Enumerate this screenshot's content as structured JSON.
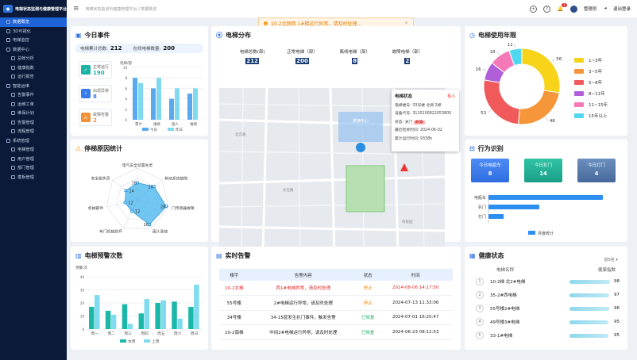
{
  "app": {
    "title": "电梯状态监测与健康管理平台"
  },
  "sidebar": {
    "items": [
      {
        "label": "数据概览",
        "active": true,
        "sub": false
      },
      {
        "label": "3D可视化",
        "sub": false
      },
      {
        "label": "电梯监控",
        "sub": false
      },
      {
        "label": "数据中心",
        "sub": false
      },
      {
        "label": "总帐分析",
        "sub": true
      },
      {
        "label": "健康指数",
        "sub": true
      },
      {
        "label": "运行报告",
        "sub": true
      },
      {
        "label": "智能运维",
        "sub": false
      },
      {
        "label": "告警事件",
        "sub": true
      },
      {
        "label": "运维工单",
        "sub": true
      },
      {
        "label": "维保计划",
        "sub": true
      },
      {
        "label": "告警管理",
        "sub": true
      },
      {
        "label": "流程管理",
        "sub": true
      },
      {
        "label": "系统管理",
        "sub": false
      },
      {
        "label": "电梯管理",
        "sub": true
      },
      {
        "label": "用户管理",
        "sub": true
      },
      {
        "label": "部门管理",
        "sub": true
      },
      {
        "label": "模板管理",
        "sub": true
      }
    ]
  },
  "topbar": {
    "breadcrumb": "电梯状态监测与健康管理平台 / 数据概览",
    "user": "管理员",
    "logout": "退出登录",
    "notif_count": "1"
  },
  "toast": {
    "text": "10-2北侧西 1#梯运行异常，请及时处理..."
  },
  "today": {
    "title": "今日事件",
    "total_label": "电梯累计总数:",
    "total": "212",
    "online_label": "在线电梯数量:",
    "online": "200",
    "normal_label": "正常运行",
    "normal": "190",
    "warning_label": "出现异常",
    "warning": "8",
    "fault_label": "故障告警",
    "fault": "2",
    "axis_label": "电梯/部",
    "cats": [
      "累计",
      "维修",
      "困人",
      "维保"
    ],
    "legend": [
      "今日",
      "昨日"
    ]
  },
  "dist": {
    "title": "电梯分布",
    "labels": [
      "电梯总数(部)",
      "正常电梯（部）",
      "离线电梯（部）",
      "故障电梯（部）"
    ],
    "values": [
      "212",
      "200",
      "8",
      "2"
    ],
    "popup": {
      "title": "电梯状态",
      "floor_lbl": "电梯楼号:",
      "floor": "33号楼 北侧 2梯",
      "code_lbl": "设备代号:",
      "code": "311010082205380S",
      "state_lbl": "状态:",
      "state": "关门",
      "state_tag": "故障",
      "last_lbl": "最近检修时间:",
      "last": "2024-06-02",
      "run_lbl": "累计运行时间:",
      "run": "9338h",
      "people": "有人"
    },
    "map_labels": [
      "拼接中心",
      "北京路",
      "文化路",
      "科技园"
    ]
  },
  "years": {
    "title": "电梯使用年限",
    "labels": [
      "1~3年",
      "3~5年",
      "5~8年",
      "8~11年",
      "11~15年",
      "15年以上"
    ],
    "values": [
      56,
      48,
      53,
      16,
      18,
      11
    ],
    "colors": [
      "#f7d31a",
      "#f5963a",
      "#f05a5a",
      "#b05fd8",
      "#f578b8",
      "#4fd8f0"
    ]
  },
  "behavior": {
    "title": "行为识别",
    "cards": [
      {
        "label": "今日电瓶车",
        "value": "8"
      },
      {
        "label": "今日扒门",
        "value": "14"
      },
      {
        "label": "今日打门",
        "value": "4"
      }
    ],
    "cats": [
      "电瓶车",
      "扒门",
      "打门"
    ],
    "values": [
      90,
      40,
      12
    ],
    "legend": "月度统计"
  },
  "stop": {
    "title": "停梯原因统计",
    "cats": [
      "电气安全装置失灵",
      "制动系统故障",
      "门传感器故障",
      "困人事故",
      "车门机械损坏",
      "机械部件",
      "安全钳失灵"
    ],
    "values": [
      16,
      20,
      28,
      26,
      12,
      12,
      14
    ],
    "max": 30
  },
  "warn": {
    "title": "电梯预警次数",
    "ylabel": "预警/次",
    "cats": [
      "周一",
      "周二",
      "周三",
      "周四",
      "周五",
      "周六",
      "周日"
    ],
    "this_week": [
      17,
      14,
      19,
      12,
      20,
      21,
      17
    ],
    "last_week": [
      26,
      11,
      4,
      23,
      22,
      8,
      34
    ],
    "legend": [
      "本周",
      "上周"
    ]
  },
  "alarm": {
    "title": "实时告警",
    "headers": [
      "楼宇",
      "告警内容",
      "状态",
      "时间"
    ],
    "rows": [
      [
        "10-2北梯",
        "西1#电梯异常，请及时处理",
        "停止",
        "2024-08-06 14:17:50"
      ],
      [
        "55号楼",
        "2#电梯运行异常，请及时处理",
        "停止",
        "2024-07-13 11:33:06"
      ],
      [
        "34号楼",
        "34-15层发生扒门事件，触发告警",
        "已恢复",
        "2024-07-01 16:20:47"
      ],
      [
        "10-2南梯",
        "中间2#电梯运行异常，请及时处理",
        "已恢复",
        "2024-06-23 08:12:53"
      ]
    ]
  },
  "health": {
    "title": "健康状态",
    "filter": "前5名",
    "headers": [
      "电梯名称",
      "健康指数"
    ],
    "rows": [
      {
        "rank": "1",
        "name": "10-2梯 北2#电梯",
        "score": "98"
      },
      {
        "rank": "2",
        "name": "35-2#西电梯",
        "score": "97"
      },
      {
        "rank": "3",
        "name": "55号楼2#电梯",
        "score": "96"
      },
      {
        "rank": "4",
        "name": "49号楼3#电梯",
        "score": "95"
      },
      {
        "rank": "5",
        "name": "33-1#电梯",
        "score": "95"
      }
    ]
  },
  "chart_data": [
    {
      "type": "bar",
      "title": "今日事件",
      "ylabel": "电梯/部",
      "categories": [
        "累计",
        "维修",
        "困人",
        "维保"
      ],
      "series": [
        {
          "name": "今日",
          "values": [
            8,
            6,
            4,
            5
          ]
        },
        {
          "name": "昨日",
          "values": [
            7,
            8,
            6,
            6
          ]
        }
      ],
      "ylim": [
        0,
        10
      ]
    },
    {
      "type": "pie",
      "title": "电梯使用年限",
      "categories": [
        "1~3年",
        "3~5年",
        "5~8年",
        "8~11年",
        "11~15年",
        "15年以上"
      ],
      "values": [
        56,
        48,
        53,
        16,
        18,
        11
      ]
    },
    {
      "type": "bar",
      "title": "行为识别",
      "categories": [
        "电瓶车",
        "扒门",
        "打门"
      ],
      "values": [
        90,
        40,
        12
      ],
      "legend": "月度统计"
    },
    {
      "type": "radar",
      "title": "停梯原因统计",
      "categories": [
        "电气安全装置失灵",
        "制动系统故障",
        "门传感器故障",
        "困人事故",
        "车门机械损坏",
        "机械部件",
        "安全钳失灵"
      ],
      "values": [
        16,
        20,
        28,
        26,
        12,
        12,
        14
      ]
    },
    {
      "type": "bar",
      "title": "电梯预警次数",
      "ylabel": "预警/次",
      "categories": [
        "周一",
        "周二",
        "周三",
        "周四",
        "周五",
        "周六",
        "周日"
      ],
      "series": [
        {
          "name": "本周",
          "values": [
            17,
            14,
            19,
            12,
            20,
            21,
            17
          ]
        },
        {
          "name": "上周",
          "values": [
            26,
            11,
            4,
            23,
            22,
            8,
            34
          ]
        }
      ],
      "ylim": [
        0,
        40
      ]
    }
  ]
}
